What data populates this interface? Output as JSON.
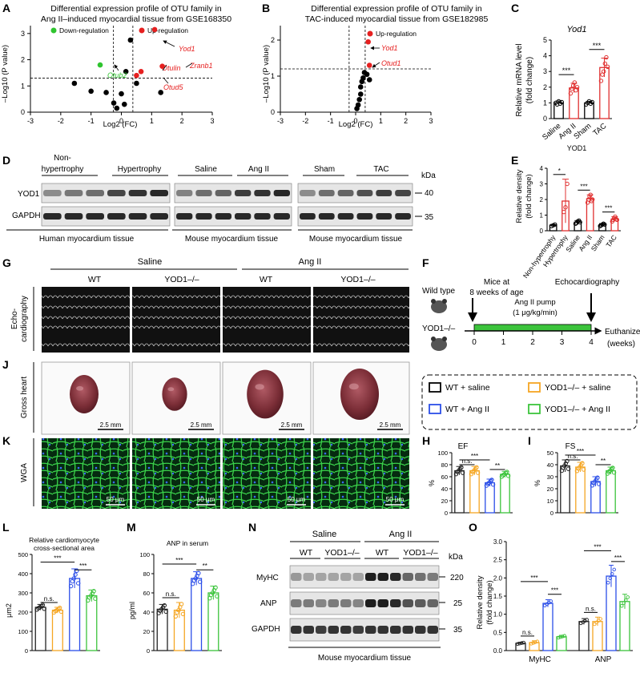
{
  "panels": {
    "A": {
      "letter": "A",
      "title1": "Differential expression profile of OTU family in",
      "title2": "Ang II–induced myocardial tissue from GSE168350",
      "legend_down": "Down-regulation",
      "legend_up": "Up-regulation",
      "xlabel": "Log2 (FC)",
      "ylabel": "–Log10 (P value)",
      "labels": {
        "otub2": "Otub2",
        "yod1": "Yod1",
        "otulin": "Otulin",
        "zranb1": "Zranb1",
        "otud5": "Otud5"
      },
      "xticks": [
        "-3",
        "-2",
        "-1",
        "0",
        "1",
        "2",
        "3"
      ],
      "yticks": [
        "0",
        "1",
        "2",
        "3"
      ]
    },
    "B": {
      "letter": "B",
      "title1": "Differential expression profile of OTU family in",
      "title2": "TAC-induced myocardial tissue from GSE182985",
      "legend_up": "Up-regulation",
      "xlabel": "Log2 (FC)",
      "ylabel": "–Log10 (P value)",
      "labels": {
        "yod1": "Yod1",
        "otud1": "Otud1"
      },
      "xticks": [
        "-3",
        "-2",
        "-1",
        "0",
        "1",
        "2",
        "3"
      ],
      "yticks": [
        "0",
        "1",
        "2"
      ]
    },
    "C": {
      "letter": "C",
      "gene": "Yod1",
      "ylabel1": "Relative mRNA level",
      "ylabel2": "(fold change)",
      "groups": [
        "Saline",
        "Ang II",
        "Sham",
        "TAC"
      ],
      "yticks": [
        "0",
        "1",
        "2",
        "3",
        "4",
        "5"
      ],
      "sig1": "***",
      "sig2": "***",
      "footer": "YOD1"
    },
    "D": {
      "letter": "D",
      "groups_top": [
        "Non-",
        "hypertrophy",
        "Hypertrophy",
        "Saline",
        "Ang II",
        "Sham",
        "TAC"
      ],
      "rows": [
        "YOD1",
        "GAPDH"
      ],
      "kda": "kDa",
      "mw": [
        "40",
        "35"
      ],
      "bottom": [
        "Human myocardium tissue",
        "Mouse myocardium tissue",
        "Mouse myocardium tissue"
      ]
    },
    "E": {
      "letter": "E",
      "ylabel1": "Relative density",
      "ylabel2": "(fold change)",
      "groups": [
        "Non-hypertrophy",
        "Hypertrophy",
        "Saline",
        "Ang II",
        "Sham",
        "TAC"
      ],
      "yticks": [
        "0",
        "1",
        "2",
        "3",
        "4"
      ],
      "sig": [
        "*",
        "***",
        "***"
      ]
    },
    "G": {
      "letter": "G",
      "saline": "Saline",
      "angii": "Ang II",
      "genotypes": [
        "WT",
        "YOD1–/–",
        "WT",
        "YOD1–/–"
      ],
      "rowlabel1": "Echo-",
      "rowlabel2": "cardiography"
    },
    "F": {
      "letter": "F",
      "wildtype": "Wild type",
      "ko": "YOD1–/–",
      "mice_at1": "Mice at",
      "mice_at2": "8 weeks of age",
      "pump1": "Ang II pump",
      "pump2": "(1 μg/kg/min)",
      "echo": "Echocardiography",
      "euth": "Euthanized",
      "weeks": "(weeks)",
      "ticks": [
        "0",
        "1",
        "2",
        "3",
        "4"
      ]
    },
    "J": {
      "letter": "J",
      "rowlabel": "Gross heart",
      "scale": "2.5 mm"
    },
    "legend": {
      "items": [
        "WT + saline",
        "YOD1–/– + saline",
        "WT + Ang II",
        "YOD1–/– + Ang II"
      ],
      "colors": [
        "#000000",
        "#f5a623",
        "#2b4ee8",
        "#3cc43c"
      ]
    },
    "K": {
      "letter": "K",
      "rowlabel": "WGA",
      "scale": "50 μm"
    },
    "H": {
      "letter": "H",
      "title": "EF",
      "ylabel": "%",
      "yticks": [
        "0",
        "20",
        "40",
        "60",
        "80",
        "100"
      ],
      "sig": [
        "n.s.",
        "***",
        "**"
      ]
    },
    "I": {
      "letter": "I",
      "title": "FS",
      "ylabel": "%",
      "yticks": [
        "0",
        "10",
        "20",
        "30",
        "40",
        "50"
      ],
      "sig": [
        "n.s.",
        "***",
        "**"
      ]
    },
    "L": {
      "letter": "L",
      "title1": "Relative cardiomyocyte",
      "title2": "cross-sectional area",
      "ylabel": "μm2",
      "yticks": [
        "0",
        "100",
        "200",
        "300",
        "400",
        "500"
      ],
      "sig": [
        "n.s.",
        "***",
        "***"
      ]
    },
    "M": {
      "letter": "M",
      "title": "ANP in serum",
      "ylabel": "pg/ml",
      "yticks": [
        "0",
        "20",
        "40",
        "60",
        "80",
        "100"
      ],
      "sig": [
        "n.s.",
        "***",
        "**"
      ]
    },
    "N": {
      "letter": "N",
      "saline": "Saline",
      "angii": "Ang II",
      "genotypes": [
        "WT",
        "YOD1–/–",
        "WT",
        "YOD1–/–"
      ],
      "rows": [
        "MyHC",
        "ANP",
        "GAPDH"
      ],
      "kda": "kDa",
      "mw": [
        "220",
        "25",
        "35"
      ],
      "bottom": "Mouse myocardium tissue"
    },
    "O": {
      "letter": "O",
      "ylabel1": "Relative density",
      "ylabel2": "(fold change)",
      "yticks": [
        "0.0",
        "0.5",
        "1.0",
        "1.5",
        "2.0",
        "2.5",
        "3.0"
      ],
      "groups": [
        "MyHC",
        "ANP"
      ],
      "sig": [
        "n.s.",
        "***",
        "***",
        "n.s.",
        "***",
        "***"
      ]
    }
  },
  "chart_data": [
    {
      "type": "scatter",
      "panel": "A",
      "xlabel": "Log2 (FC)",
      "ylabel": "–Log10 (P value)",
      "xlim": [
        -3,
        3
      ],
      "ylim": [
        0,
        3.3
      ],
      "thresholds": {
        "x": [
          -0.26,
          0.38
        ],
        "y": 1.3
      },
      "points": [
        {
          "x": -1.55,
          "y": 1.1,
          "c": "black"
        },
        {
          "x": -1.0,
          "y": 0.8,
          "c": "black"
        },
        {
          "x": -0.5,
          "y": 0.75,
          "c": "black"
        },
        {
          "x": -0.25,
          "y": 0.35,
          "c": "black"
        },
        {
          "x": -0.15,
          "y": 0.15,
          "c": "black"
        },
        {
          "x": 0.0,
          "y": 0.7,
          "c": "black"
        },
        {
          "x": 0.1,
          "y": 0.3,
          "c": "black"
        },
        {
          "x": 0.15,
          "y": 1.55,
          "c": "black"
        },
        {
          "x": 0.3,
          "y": 2.75,
          "c": "black"
        },
        {
          "x": 0.5,
          "y": 1.1,
          "c": "black"
        },
        {
          "x": 1.3,
          "y": 0.75,
          "c": "black"
        },
        {
          "x": -0.7,
          "y": 1.8,
          "c": "green"
        },
        {
          "x": 0.5,
          "y": 1.4,
          "c": "red"
        },
        {
          "x": 0.65,
          "y": 1.55,
          "c": "red"
        },
        {
          "x": 1.1,
          "y": 3.15,
          "c": "red"
        },
        {
          "x": 1.35,
          "y": 1.75,
          "c": "red"
        }
      ]
    },
    {
      "type": "scatter",
      "panel": "B",
      "xlabel": "Log2 (FC)",
      "ylabel": "–Log10 (P value)",
      "xlim": [
        -3,
        3
      ],
      "ylim": [
        0,
        2.4
      ],
      "thresholds": {
        "x": [
          -0.26,
          0.38
        ],
        "y": 1.2
      },
      "points": [
        {
          "x": 0.05,
          "y": 0.1,
          "c": "black"
        },
        {
          "x": 0.1,
          "y": 0.2,
          "c": "black"
        },
        {
          "x": 0.15,
          "y": 0.35,
          "c": "black"
        },
        {
          "x": 0.2,
          "y": 0.5,
          "c": "black"
        },
        {
          "x": 0.2,
          "y": 0.7,
          "c": "black"
        },
        {
          "x": 0.25,
          "y": 0.85,
          "c": "black"
        },
        {
          "x": 0.3,
          "y": 0.95,
          "c": "black"
        },
        {
          "x": 0.35,
          "y": 1.1,
          "c": "black"
        },
        {
          "x": 0.45,
          "y": 1.05,
          "c": "black"
        },
        {
          "x": 0.55,
          "y": 0.9,
          "c": "black"
        },
        {
          "x": 0.55,
          "y": 1.3,
          "c": "red"
        },
        {
          "x": 0.5,
          "y": 1.95,
          "c": "red"
        }
      ]
    },
    {
      "type": "bar",
      "panel": "C",
      "categories": [
        "Saline",
        "Ang II",
        "Sham",
        "TAC"
      ],
      "values": [
        1.0,
        1.95,
        1.0,
        3.25
      ],
      "errors": [
        0.12,
        0.3,
        0.1,
        0.6
      ],
      "colors": [
        "#000000",
        "#e03030",
        "#000000",
        "#e03030"
      ],
      "points": [
        [
          1.0,
          0.9,
          1.1,
          0.95,
          1.05
        ],
        [
          1.6,
          1.9,
          2.1,
          2.3,
          1.8,
          2.0
        ],
        [
          0.9,
          1.0,
          1.1,
          0.95,
          1.05
        ],
        [
          2.4,
          2.8,
          3.0,
          3.5,
          3.9,
          3.3
        ]
      ],
      "ylim": [
        0,
        5
      ]
    },
    {
      "type": "bar",
      "panel": "E",
      "categories": [
        "Non-hypertrophy",
        "Hypertrophy",
        "Saline",
        "Ang II",
        "Sham",
        "TAC"
      ],
      "values": [
        0.35,
        1.9,
        0.55,
        2.05,
        0.38,
        0.75
      ],
      "errors": [
        0.05,
        1.4,
        0.1,
        0.25,
        0.08,
        0.15
      ],
      "colors": [
        "#000000",
        "#e03030",
        "#000000",
        "#e03030",
        "#000000",
        "#e03030"
      ],
      "points": [
        [
          0.3,
          0.35,
          0.4
        ],
        [
          1.2,
          1.5,
          3.0
        ],
        [
          0.45,
          0.5,
          0.6,
          0.65,
          0.55
        ],
        [
          1.8,
          2.0,
          2.2,
          2.3,
          1.9,
          2.0
        ],
        [
          0.3,
          0.35,
          0.4,
          0.45,
          0.4
        ],
        [
          0.6,
          0.7,
          0.8,
          0.9,
          0.75,
          0.7
        ]
      ],
      "ylim": [
        0,
        4
      ]
    },
    {
      "type": "bar",
      "panel": "H",
      "title": "EF",
      "ylabel": "%",
      "categories": [
        "WT + saline",
        "YOD1–/– + saline",
        "WT + Ang II",
        "YOD1–/– + Ang II"
      ],
      "values": [
        70,
        70,
        50,
        64
      ],
      "errors": [
        7,
        7,
        6,
        5
      ],
      "ylim": [
        0,
        100
      ]
    },
    {
      "type": "bar",
      "panel": "I",
      "title": "FS",
      "ylabel": "%",
      "categories": [
        "WT + saline",
        "YOD1–/– + saline",
        "WT + Ang II",
        "YOD1–/– + Ang II"
      ],
      "values": [
        39,
        38,
        26,
        35
      ],
      "errors": [
        5,
        4,
        4,
        3
      ],
      "ylim": [
        0,
        50
      ]
    },
    {
      "type": "bar",
      "panel": "L",
      "ylabel": "μm2",
      "categories": [
        "WT + saline",
        "YOD1–/– + saline",
        "WT + Ang II",
        "YOD1–/– + Ang II"
      ],
      "values": [
        225,
        210,
        375,
        285
      ],
      "errors": [
        15,
        15,
        50,
        30
      ],
      "ylim": [
        0,
        500
      ]
    },
    {
      "type": "bar",
      "panel": "M",
      "title": "ANP in serum",
      "ylabel": "pg/ml",
      "categories": [
        "WT + saline",
        "YOD1–/– + saline",
        "WT + Ang II",
        "YOD1–/– + Ang II"
      ],
      "values": [
        43,
        42,
        75,
        60
      ],
      "errors": [
        5,
        8,
        7,
        7
      ],
      "ylim": [
        0,
        100
      ]
    },
    {
      "type": "bar",
      "panel": "O",
      "categories": [
        "MyHC",
        "ANP"
      ],
      "series": [
        {
          "name": "WT + saline",
          "values": [
            0.2,
            0.8
          ]
        },
        {
          "name": "YOD1–/– + saline",
          "values": [
            0.22,
            0.8
          ]
        },
        {
          "name": "WT + Ang II",
          "values": [
            1.3,
            2.05
          ]
        },
        {
          "name": "YOD1–/– + Ang II",
          "values": [
            0.38,
            1.35
          ]
        }
      ],
      "errors": [
        [
          0.03,
          0.08
        ],
        [
          0.05,
          0.12
        ],
        [
          0.1,
          0.3
        ],
        [
          0.04,
          0.2
        ]
      ],
      "ylim": [
        0,
        3.0
      ]
    }
  ]
}
